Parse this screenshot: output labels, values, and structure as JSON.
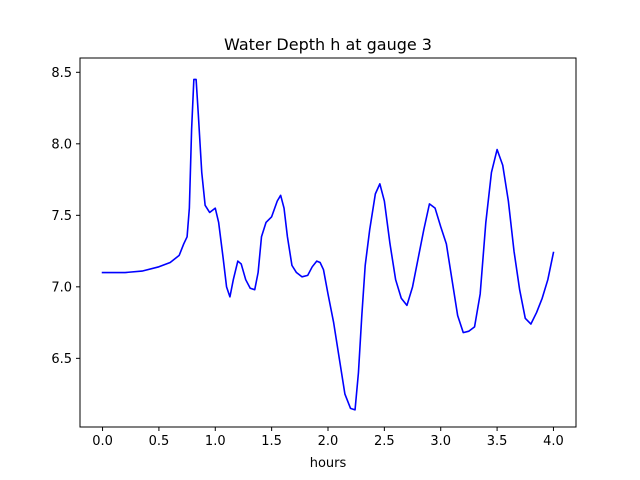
{
  "chart_data": {
    "type": "line",
    "title": "Water Depth h at gauge 3",
    "xlabel": "hours",
    "ylabel": "",
    "xlim": [
      -0.2,
      4.2
    ],
    "ylim": [
      6.02,
      8.6
    ],
    "x_ticks": [
      0.0,
      0.5,
      1.0,
      1.5,
      2.0,
      2.5,
      3.0,
      3.5,
      4.0
    ],
    "x_tick_labels": [
      "0.0",
      "0.5",
      "1.0",
      "1.5",
      "2.0",
      "2.5",
      "3.0",
      "3.5",
      "4.0"
    ],
    "y_ticks": [
      6.5,
      7.0,
      7.5,
      8.0,
      8.5
    ],
    "y_tick_labels": [
      "6.5",
      "7.0",
      "7.5",
      "8.0",
      "8.5"
    ],
    "grid": false,
    "legend": "none",
    "color": "#0000ff",
    "series": [
      {
        "x": [
          0.0,
          0.2,
          0.35,
          0.5,
          0.6,
          0.68,
          0.72,
          0.75,
          0.77,
          0.79,
          0.81,
          0.83,
          0.85,
          0.88,
          0.91,
          0.95,
          1.0,
          1.03,
          1.07,
          1.1,
          1.13,
          1.16,
          1.2,
          1.23,
          1.27,
          1.31,
          1.35,
          1.38,
          1.41,
          1.45,
          1.5,
          1.55,
          1.58,
          1.61,
          1.64,
          1.68,
          1.72,
          1.77,
          1.82,
          1.86,
          1.9,
          1.93,
          1.96,
          2.0,
          2.05,
          2.1,
          2.15,
          2.2,
          2.24,
          2.27,
          2.3,
          2.33,
          2.37,
          2.42,
          2.46,
          2.5,
          2.55,
          2.6,
          2.65,
          2.7,
          2.75,
          2.8,
          2.85,
          2.9,
          2.95,
          3.0,
          3.05,
          3.1,
          3.15,
          3.2,
          3.25,
          3.3,
          3.35,
          3.4,
          3.45,
          3.5,
          3.55,
          3.6,
          3.65,
          3.7,
          3.75,
          3.8,
          3.85,
          3.9,
          3.95,
          4.0
        ],
        "y": [
          7.1,
          7.1,
          7.11,
          7.14,
          7.17,
          7.22,
          7.3,
          7.35,
          7.55,
          8.1,
          8.45,
          8.45,
          8.2,
          7.8,
          7.57,
          7.52,
          7.55,
          7.45,
          7.2,
          7.0,
          6.93,
          7.05,
          7.18,
          7.16,
          7.05,
          6.99,
          6.98,
          7.1,
          7.35,
          7.45,
          7.49,
          7.6,
          7.64,
          7.55,
          7.35,
          7.15,
          7.1,
          7.07,
          7.08,
          7.14,
          7.18,
          7.17,
          7.12,
          6.95,
          6.75,
          6.5,
          6.25,
          6.15,
          6.14,
          6.4,
          6.8,
          7.15,
          7.4,
          7.65,
          7.72,
          7.6,
          7.3,
          7.05,
          6.92,
          6.87,
          7.0,
          7.2,
          7.4,
          7.58,
          7.55,
          7.42,
          7.3,
          7.05,
          6.8,
          6.68,
          6.69,
          6.72,
          6.95,
          7.45,
          7.8,
          7.96,
          7.85,
          7.6,
          7.25,
          6.98,
          6.78,
          6.74,
          6.82,
          6.92,
          7.05,
          7.24
        ]
      }
    ]
  }
}
